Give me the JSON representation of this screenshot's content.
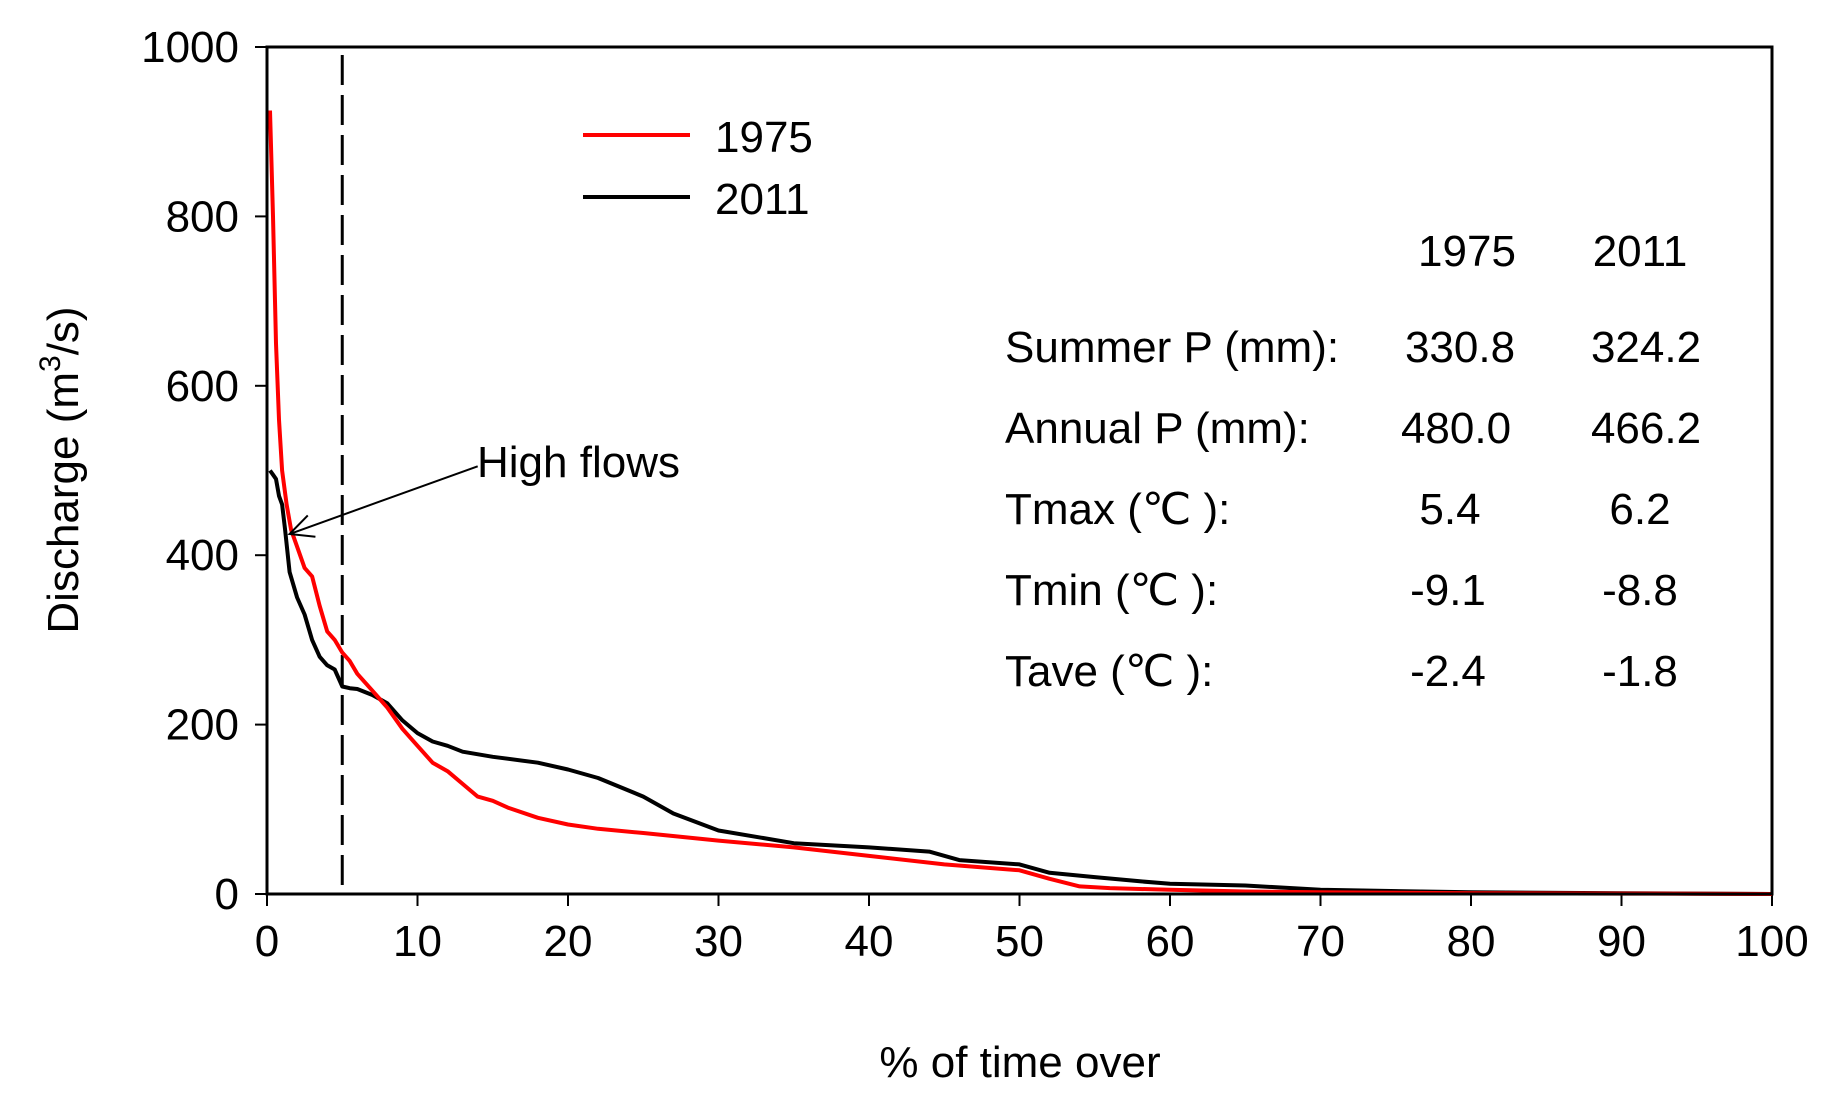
{
  "chart_data": {
    "type": "line",
    "xlabel": "% of time over",
    "ylabel_main": "Discharge (m",
    "ylabel_sup": "3",
    "ylabel_tail": "/s)",
    "xlim": [
      0,
      100
    ],
    "ylim": [
      0,
      1000
    ],
    "xticks": [
      0,
      10,
      20,
      30,
      40,
      50,
      60,
      70,
      80,
      90,
      100
    ],
    "yticks": [
      0,
      200,
      400,
      600,
      800,
      1000
    ],
    "vline_x": 5,
    "annotation": {
      "text": "High flows",
      "arrow_target": [
        1.5,
        425
      ],
      "text_anchor": [
        14,
        505
      ]
    },
    "series": [
      {
        "name": "1975",
        "color": "#ff0000",
        "x": [
          0.2,
          0.4,
          0.6,
          0.8,
          1.0,
          1.3,
          1.6,
          2.0,
          2.5,
          3.0,
          3.5,
          4.0,
          4.5,
          5.0,
          5.5,
          6.0,
          7.0,
          8.0,
          9.0,
          10.0,
          11.0,
          12.0,
          13.0,
          14.0,
          15.0,
          16.0,
          18.0,
          20.0,
          22.0,
          25.0,
          30.0,
          35.0,
          40.0,
          45.0,
          50.0,
          52.0,
          54.0,
          56.0,
          60.0,
          65.0,
          70.0,
          80.0,
          90.0,
          100.0
        ],
        "y": [
          925,
          800,
          650,
          560,
          500,
          460,
          430,
          410,
          385,
          375,
          340,
          310,
          300,
          285,
          275,
          260,
          240,
          220,
          195,
          175,
          155,
          145,
          130,
          115,
          110,
          102,
          90,
          82,
          77,
          72,
          63,
          55,
          45,
          35,
          28,
          18,
          9,
          7,
          5,
          3,
          2,
          1,
          0.5,
          0
        ]
      },
      {
        "name": "2011",
        "color": "#000000",
        "x": [
          0.2,
          0.4,
          0.6,
          0.8,
          1.0,
          1.2,
          1.5,
          2.0,
          2.5,
          3.0,
          3.5,
          4.0,
          4.5,
          5.0,
          5.5,
          6.0,
          7.0,
          8.0,
          9.0,
          10.0,
          11.0,
          12.0,
          13.0,
          15.0,
          18.0,
          20.0,
          22.0,
          25.0,
          27.0,
          30.0,
          35.0,
          40.0,
          44.0,
          46.0,
          50.0,
          52.0,
          55.0,
          58.0,
          60.0,
          65.0,
          70.0,
          80.0,
          90.0,
          100.0
        ],
        "y": [
          500,
          495,
          490,
          470,
          460,
          430,
          380,
          350,
          330,
          300,
          280,
          270,
          265,
          245,
          243,
          242,
          235,
          225,
          205,
          190,
          180,
          175,
          168,
          162,
          155,
          147,
          137,
          115,
          95,
          75,
          60,
          55,
          50,
          40,
          35,
          25,
          20,
          15,
          12,
          10,
          5,
          2,
          1,
          0
        ]
      }
    ],
    "stats_table": {
      "columns": [
        "",
        "1975",
        "2011"
      ],
      "rows": [
        {
          "label": "Summer P (mm):",
          "v1975": "330.8",
          "v2011": "324.2"
        },
        {
          "label": "Annual P (mm):",
          "v1975": "480.0",
          "v2011": "466.2"
        },
        {
          "label": "Tmax (℃ ):",
          "v1975": "5.4",
          "v2011": "6.2"
        },
        {
          "label": "Tmin  (℃ ):",
          "v1975": "-9.1",
          "v2011": "-8.8"
        },
        {
          "label": "Tave  (℃ ):",
          "v1975": "-2.4",
          "v2011": "-1.8"
        }
      ]
    }
  }
}
